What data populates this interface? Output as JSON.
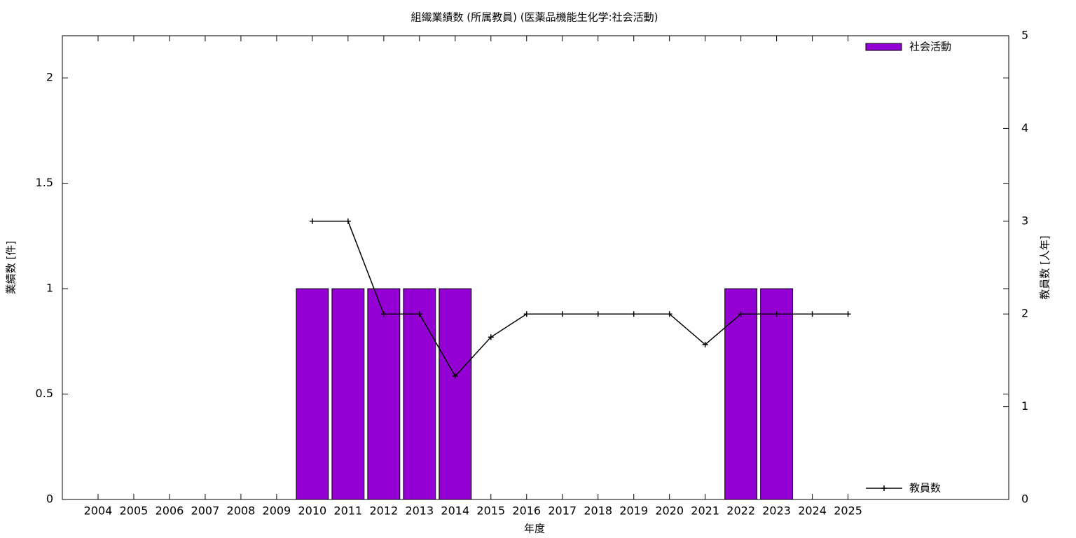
{
  "chart_data": {
    "type": "bar",
    "title": "組織業績数 (所属教員) (医薬品機能生化学:社会活動)",
    "x_label": "年度",
    "y_label": "業績数 [件]",
    "y2_label": "教員数 [人年]",
    "categories": [
      "2004",
      "2005",
      "2006",
      "2007",
      "2008",
      "2009",
      "2010",
      "2011",
      "2012",
      "2013",
      "2014",
      "2015",
      "2016",
      "2017",
      "2018",
      "2019",
      "2020",
      "2021",
      "2022",
      "2023",
      "2024",
      "2025"
    ],
    "series": [
      {
        "name": "社会活動",
        "type": "bar",
        "color": "#9400d3",
        "legend": "top-right",
        "values": [
          0,
          0,
          0,
          0,
          0,
          0,
          1,
          1,
          1,
          1,
          1,
          0,
          0,
          0,
          0,
          0,
          0,
          0,
          1,
          1,
          0,
          0
        ]
      },
      {
        "name": "教員数",
        "type": "line",
        "axis": "y2",
        "color": "#000000",
        "legend": "bottom-right",
        "values": [
          null,
          null,
          null,
          null,
          null,
          null,
          3,
          3,
          2,
          2,
          1.33,
          1.75,
          2,
          2,
          2,
          2,
          2,
          1.67,
          2,
          2,
          2,
          2
        ]
      }
    ],
    "ylim": [
      0,
      2.2
    ],
    "yticks": [
      0,
      0.5,
      1,
      1.5,
      2
    ],
    "y2lim": [
      0,
      5
    ],
    "y2ticks": [
      0,
      1,
      2,
      3,
      4,
      5
    ],
    "grid": false
  }
}
